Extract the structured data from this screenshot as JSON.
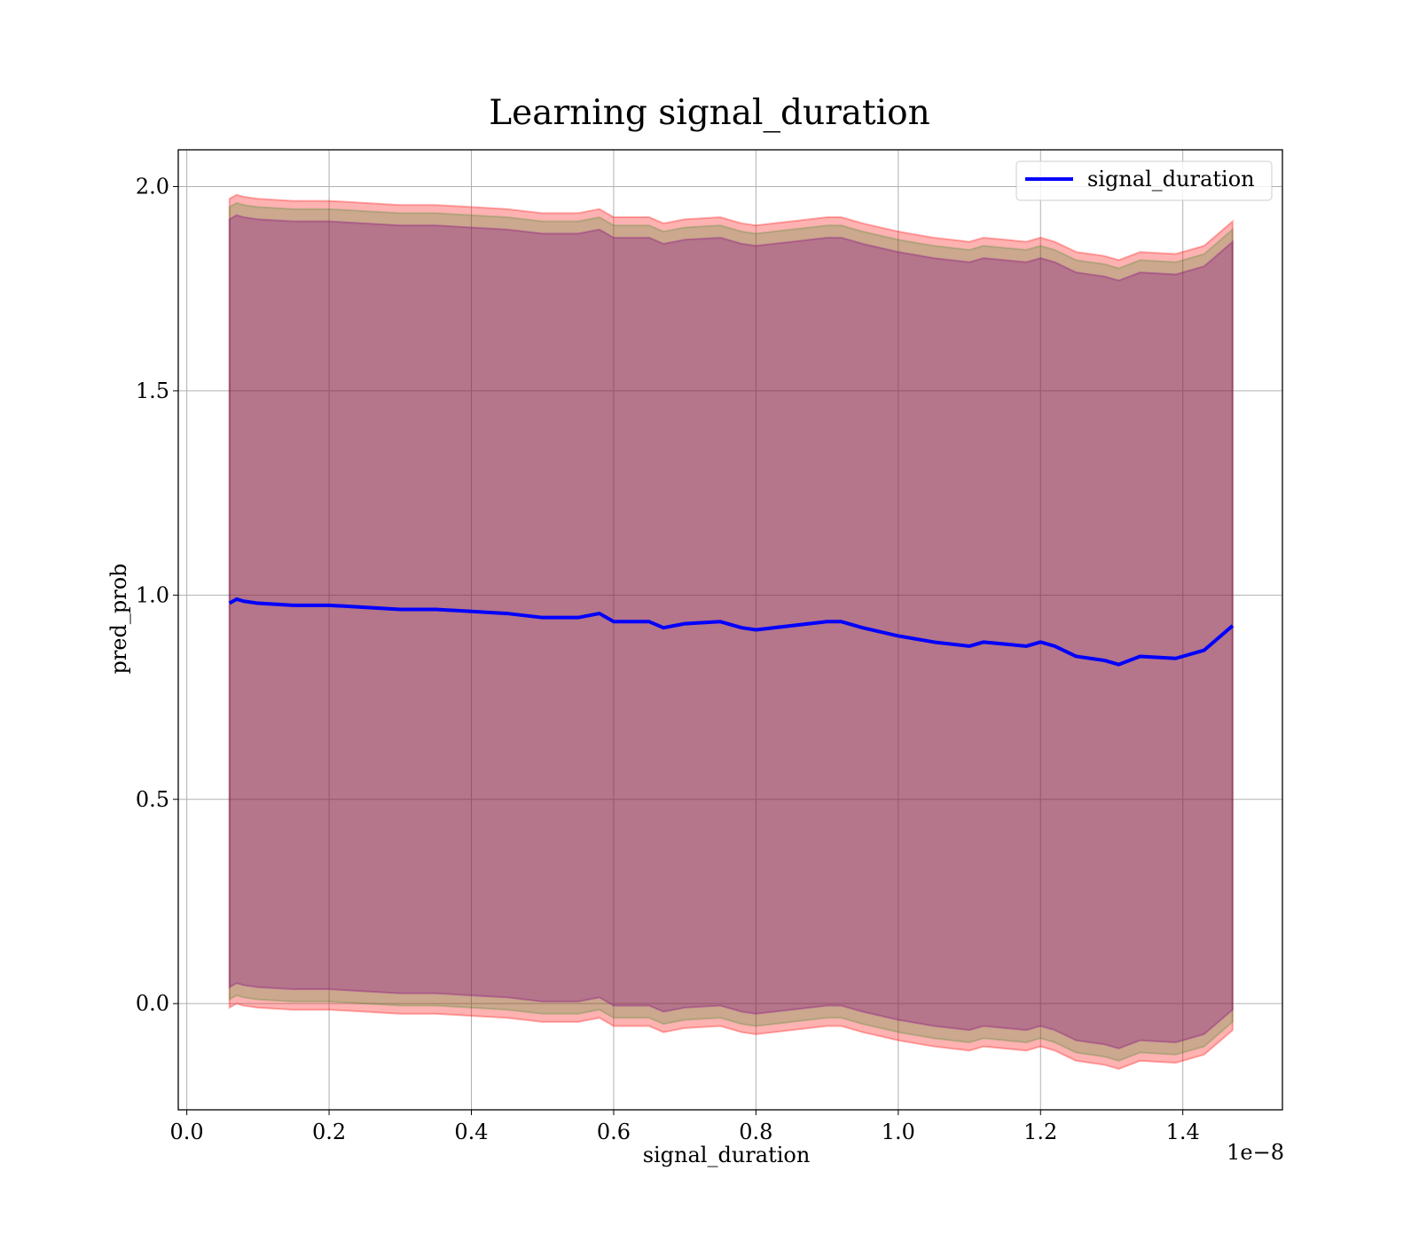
{
  "chart_data": {
    "type": "line",
    "title": "Learning signal_duration",
    "xlabel": "signal_duration",
    "ylabel": "pred_prob",
    "x_offset_label": "1e−8",
    "x_tick_labels": [
      "0.0",
      "0.2",
      "0.4",
      "0.6",
      "0.8",
      "1.0",
      "1.2",
      "1.4"
    ],
    "y_tick_labels": [
      "0.0",
      "0.5",
      "1.0",
      "1.5",
      "2.0"
    ],
    "xlim": [
      -1.2e-10,
      1.54e-08
    ],
    "ylim": [
      -0.26,
      2.09
    ],
    "grid": true,
    "legend_position": "upper right",
    "series": [
      {
        "name": "signal_duration",
        "color": "#0000ff",
        "x": [
          6e-10,
          7e-10,
          8e-10,
          1e-09,
          1.5e-09,
          2e-09,
          2.5e-09,
          3e-09,
          3.5e-09,
          4e-09,
          4.5e-09,
          5e-09,
          5.5e-09,
          5.8e-09,
          6e-09,
          6.5e-09,
          6.7e-09,
          7e-09,
          7.5e-09,
          7.8e-09,
          8e-09,
          8.5e-09,
          9e-09,
          9.2e-09,
          9.5e-09,
          1e-08,
          1.05e-08,
          1.1e-08,
          1.12e-08,
          1.15e-08,
          1.18e-08,
          1.2e-08,
          1.22e-08,
          1.25e-08,
          1.27e-08,
          1.29e-08,
          1.31e-08,
          1.34e-08,
          1.39e-08,
          1.43e-08,
          1.47e-08
        ],
        "y": [
          0.98,
          0.99,
          0.985,
          0.98,
          0.975,
          0.975,
          0.97,
          0.965,
          0.965,
          0.96,
          0.955,
          0.945,
          0.945,
          0.955,
          0.935,
          0.935,
          0.92,
          0.93,
          0.935,
          0.92,
          0.915,
          0.925,
          0.935,
          0.935,
          0.92,
          0.9,
          0.885,
          0.875,
          0.885,
          0.88,
          0.875,
          0.885,
          0.875,
          0.85,
          0.845,
          0.84,
          0.83,
          0.85,
          0.845,
          0.865,
          0.925
        ]
      }
    ],
    "bands": [
      {
        "color": "#ff0000",
        "opacity": 0.3,
        "upper_delta": 0.99,
        "lower_delta": 0.99
      },
      {
        "color": "#008000",
        "opacity": 0.2,
        "upper_delta": 0.97,
        "lower_delta": 0.97
      },
      {
        "color": "#800080",
        "opacity": 0.3,
        "upper_delta": 0.94,
        "lower_delta": 0.94
      }
    ]
  }
}
